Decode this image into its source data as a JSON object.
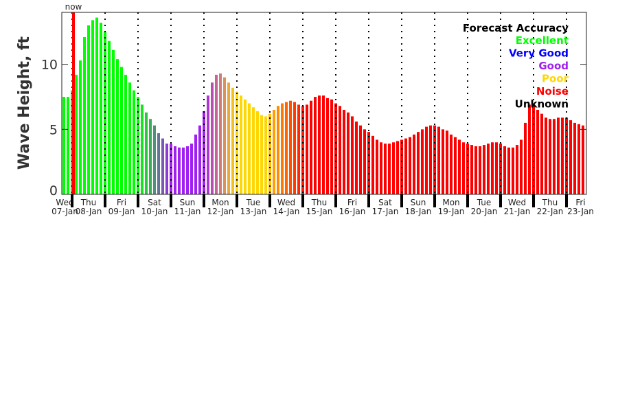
{
  "chart_data": {
    "type": "bar",
    "title": "",
    "xlabel": "",
    "ylabel": "Wave Height, ft",
    "ylim": [
      0,
      14
    ],
    "yticks": [
      "0",
      "5",
      "10"
    ],
    "ytick_values": [
      0,
      5,
      10
    ],
    "grid": false,
    "interval_hours": 3,
    "first_day_bars": 2.5,
    "days": [
      {
        "dow": "Wed",
        "date": "07-Jan"
      },
      {
        "dow": "Thu",
        "date": "08-Jan"
      },
      {
        "dow": "Fri",
        "date": "09-Jan"
      },
      {
        "dow": "Sat",
        "date": "10-Jan"
      },
      {
        "dow": "Sun",
        "date": "11-Jan"
      },
      {
        "dow": "Mon",
        "date": "12-Jan"
      },
      {
        "dow": "Tue",
        "date": "13-Jan"
      },
      {
        "dow": "Wed",
        "date": "14-Jan"
      },
      {
        "dow": "Thu",
        "date": "15-Jan"
      },
      {
        "dow": "Fri",
        "date": "16-Jan"
      },
      {
        "dow": "Sat",
        "date": "17-Jan"
      },
      {
        "dow": "Sun",
        "date": "18-Jan"
      },
      {
        "dow": "Mon",
        "date": "19-Jan"
      },
      {
        "dow": "Tue",
        "date": "20-Jan"
      },
      {
        "dow": "Wed",
        "date": "21-Jan"
      },
      {
        "dow": "Thu",
        "date": "22-Jan"
      },
      {
        "dow": "Fri",
        "date": "23-Jan"
      }
    ],
    "now_label": "now",
    "now_color": "#ff0000",
    "values": [
      7.5,
      7.5,
      8.0,
      9.2,
      10.3,
      12.1,
      13.0,
      13.4,
      13.6,
      13.2,
      12.5,
      11.8,
      11.1,
      10.4,
      9.8,
      9.2,
      8.6,
      8.0,
      7.5,
      6.9,
      6.3,
      5.8,
      5.3,
      4.7,
      4.3,
      3.9,
      3.9,
      3.7,
      3.6,
      3.6,
      3.7,
      3.9,
      4.6,
      5.3,
      6.4,
      7.6,
      8.6,
      9.2,
      9.3,
      9.0,
      8.6,
      8.2,
      7.9,
      7.6,
      7.3,
      7.0,
      6.7,
      6.4,
      6.1,
      6.0,
      6.2,
      6.5,
      6.8,
      7.0,
      7.1,
      7.2,
      7.1,
      6.9,
      6.8,
      6.9,
      7.2,
      7.5,
      7.6,
      7.6,
      7.4,
      7.3,
      7.0,
      6.8,
      6.5,
      6.3,
      6.0,
      5.6,
      5.3,
      5.0,
      4.8,
      4.5,
      4.2,
      4.0,
      3.9,
      3.9,
      4.0,
      4.1,
      4.2,
      4.3,
      4.4,
      4.6,
      4.8,
      5.0,
      5.2,
      5.3,
      5.3,
      5.2,
      5.0,
      4.9,
      4.6,
      4.4,
      4.2,
      4.0,
      3.9,
      3.8,
      3.7,
      3.7,
      3.8,
      3.9,
      4.0,
      4.0,
      3.9,
      3.7,
      3.6,
      3.6,
      3.8,
      4.2,
      5.5,
      6.9,
      6.9,
      6.5,
      6.2,
      5.9,
      5.8,
      5.8,
      5.9,
      5.9,
      5.9,
      5.7,
      5.5,
      5.4,
      5.3
    ],
    "color_stops": [
      [
        0,
        "#00ff00"
      ],
      [
        18,
        "#00ff00"
      ],
      [
        26,
        "#a020f0"
      ],
      [
        34,
        "#a020f0"
      ],
      [
        42,
        "#ffd700"
      ],
      [
        49,
        "#ffd700"
      ],
      [
        51,
        "#ffa000"
      ],
      [
        59,
        "#ff0000"
      ],
      [
        126,
        "#ff0000"
      ]
    ],
    "legend": {
      "title": "Forecast Accuracy",
      "placement": "top-right",
      "entries": [
        {
          "label": "Excellent",
          "color": "#00ff00"
        },
        {
          "label": "Very Good",
          "color": "#0000ff"
        },
        {
          "label": "Good",
          "color": "#a020f0"
        },
        {
          "label": "Poor",
          "color": "#ffd700"
        },
        {
          "label": "Noise",
          "color": "#ff0000"
        },
        {
          "label": "Unknown",
          "color": "#000000"
        }
      ]
    }
  }
}
